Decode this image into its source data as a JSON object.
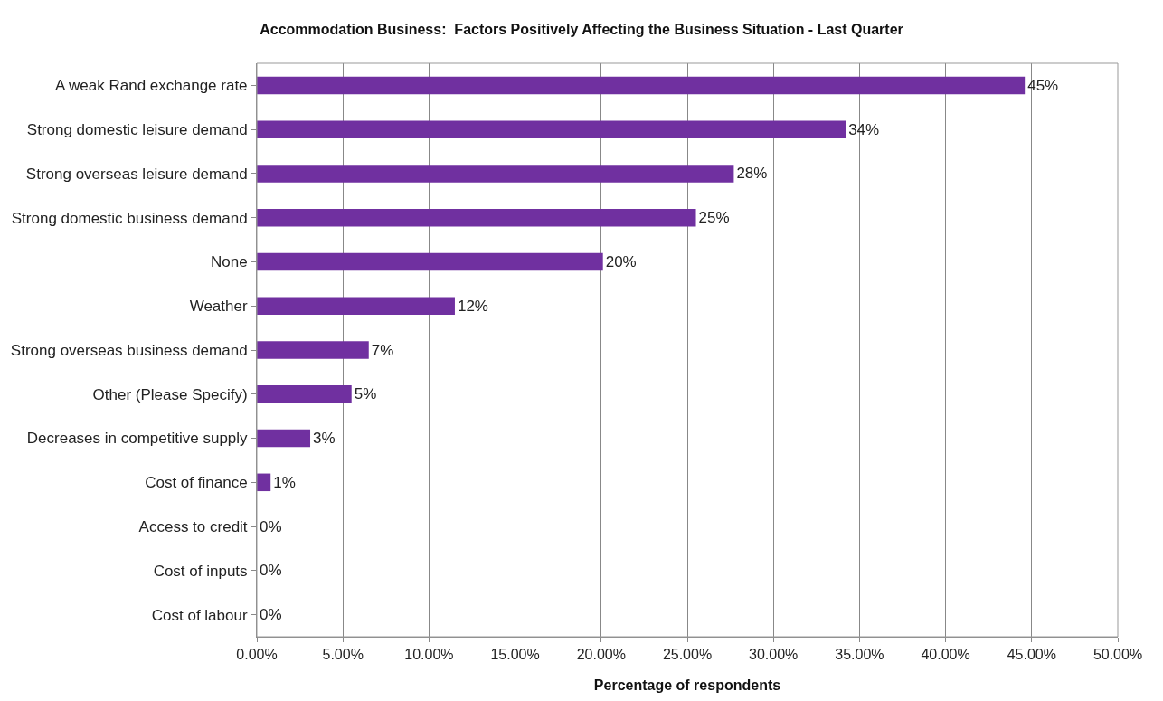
{
  "chart_data": {
    "type": "bar",
    "orientation": "horizontal",
    "title": "Accommodation Business:  Factors Positively Affecting the Business Situation - Last Quarter",
    "xlabel": "Percentage of respondents",
    "categories": [
      "A weak Rand exchange rate",
      "Strong domestic leisure demand",
      "Strong overseas leisure demand",
      "Strong domestic business demand",
      "None",
      "Weather",
      "Strong overseas business demand",
      "Other (Please Specify)",
      "Decreases in competitive supply",
      "Cost of finance",
      "Access to credit",
      "Cost of inputs",
      "Cost of labour"
    ],
    "values": [
      44.6,
      34.2,
      27.7,
      25.5,
      20.1,
      11.5,
      6.5,
      5.5,
      3.1,
      0.8,
      0,
      0,
      0
    ],
    "value_labels": [
      "45%",
      "34%",
      "28%",
      "25%",
      "20%",
      "12%",
      "7%",
      "5%",
      "3%",
      "1%",
      "0%",
      "0%",
      "0%"
    ],
    "color": "#7030a0",
    "xlim": [
      0,
      50
    ],
    "xticks": [
      {
        "value": 0,
        "label": "0.00%"
      },
      {
        "value": 5,
        "label": "5.00%"
      },
      {
        "value": 10,
        "label": "10.00%"
      },
      {
        "value": 15,
        "label": "15.00%"
      },
      {
        "value": 20,
        "label": "20.00%"
      },
      {
        "value": 25,
        "label": "25.00%"
      },
      {
        "value": 30,
        "label": "30.00%"
      },
      {
        "value": 35,
        "label": "35.00%"
      },
      {
        "value": 40,
        "label": "40.00%"
      },
      {
        "value": 45,
        "label": "45.00%"
      },
      {
        "value": 50,
        "label": "50.00%"
      }
    ],
    "grid": "x"
  }
}
